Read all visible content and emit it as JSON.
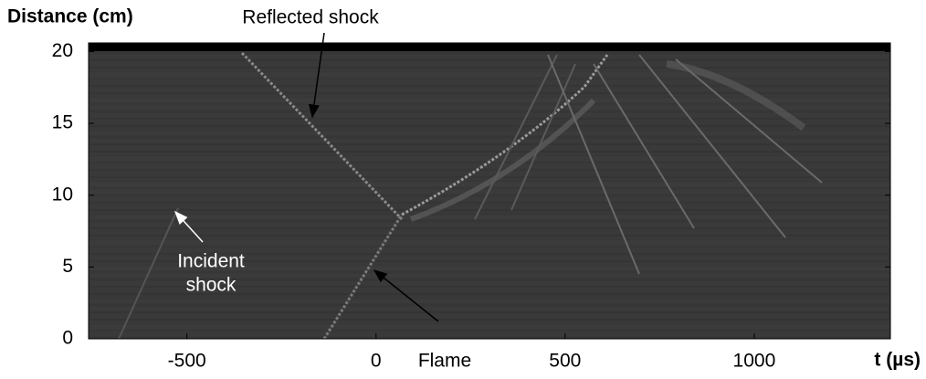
{
  "chart_data": {
    "type": "image",
    "ylabel": "Distance (cm)",
    "xlabel": "t (µs)",
    "xlim": [
      -760,
      1360
    ],
    "xticks": [
      -500,
      0,
      500,
      1000
    ],
    "ylim": [
      0,
      20.6
    ],
    "yticks": [
      0,
      5,
      10,
      15,
      20
    ],
    "annotations": [
      {
        "text": "Reflected shock"
      },
      {
        "lines": [
          "Incident",
          "shock"
        ]
      },
      {
        "text": "Flame"
      }
    ]
  }
}
